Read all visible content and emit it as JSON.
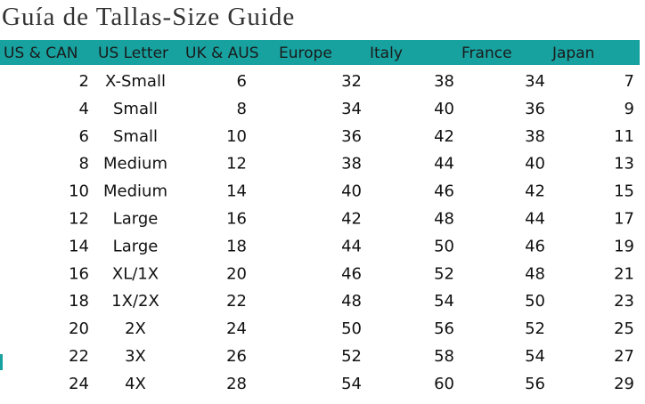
{
  "header": {
    "title": "Guía de Tallas-Size Guide"
  },
  "table": {
    "columns": [
      "US & CAN",
      "US Letter",
      "UK & AUS",
      "Europe",
      "Italy",
      "France",
      "Japan"
    ],
    "rows": [
      [
        2,
        "X-Small",
        6,
        32,
        38,
        34,
        7
      ],
      [
        4,
        "Small",
        8,
        34,
        40,
        36,
        9
      ],
      [
        6,
        "Small",
        10,
        36,
        42,
        38,
        11
      ],
      [
        8,
        "Medium",
        12,
        38,
        44,
        40,
        13
      ],
      [
        10,
        "Medium",
        14,
        40,
        46,
        42,
        15
      ],
      [
        12,
        "Large",
        16,
        42,
        48,
        44,
        17
      ],
      [
        14,
        "Large",
        18,
        44,
        50,
        46,
        19
      ],
      [
        16,
        "XL/1X",
        20,
        46,
        52,
        48,
        21
      ],
      [
        18,
        "1X/2X",
        22,
        48,
        54,
        50,
        23
      ],
      [
        20,
        "2X",
        24,
        50,
        56,
        52,
        25
      ],
      [
        22,
        "3X",
        26,
        52,
        58,
        54,
        27
      ],
      [
        24,
        "4X",
        28,
        54,
        60,
        56,
        29
      ]
    ]
  }
}
